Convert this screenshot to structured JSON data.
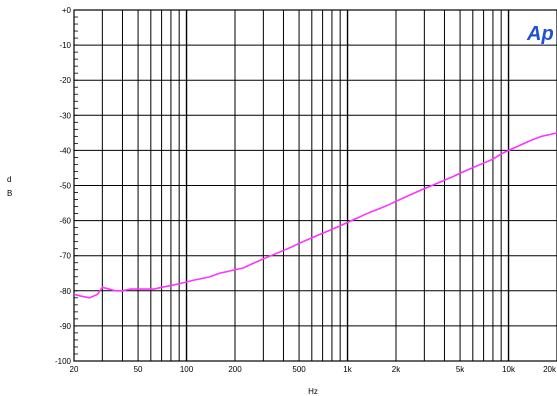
{
  "logo_text": "Ap",
  "colors": {
    "trace": "#ff33ff",
    "grid": "#000000",
    "logo": "#1f4fd6"
  },
  "chart_data": {
    "type": "line",
    "title": "",
    "xlabel": "Hz",
    "ylabel": "dB",
    "ylabel_lines": [
      "d",
      "B"
    ],
    "x_scale": "log",
    "xlim": [
      20,
      20000
    ],
    "ylim": [
      -100,
      0
    ],
    "grid": true,
    "x_ticks": [
      {
        "value": 20,
        "label": "20"
      },
      {
        "value": 50,
        "label": "50"
      },
      {
        "value": 100,
        "label": "100"
      },
      {
        "value": 200,
        "label": "200"
      },
      {
        "value": 500,
        "label": "500"
      },
      {
        "value": 1000,
        "label": "1k"
      },
      {
        "value": 2000,
        "label": "2k"
      },
      {
        "value": 5000,
        "label": "5k"
      },
      {
        "value": 10000,
        "label": "10k"
      },
      {
        "value": 20000,
        "label": "20k"
      }
    ],
    "y_ticks": [
      {
        "value": 0,
        "label": "+0"
      },
      {
        "value": -10,
        "label": "-10"
      },
      {
        "value": -20,
        "label": "-20"
      },
      {
        "value": -30,
        "label": "-30"
      },
      {
        "value": -40,
        "label": "-40"
      },
      {
        "value": -50,
        "label": "-50"
      },
      {
        "value": -60,
        "label": "-60"
      },
      {
        "value": -70,
        "label": "-70"
      },
      {
        "value": -80,
        "label": "-80"
      },
      {
        "value": -90,
        "label": "-90"
      },
      {
        "value": -100,
        "label": "-100"
      }
    ],
    "series": [
      {
        "x": [
          20,
          22,
          25,
          28,
          30,
          33,
          36,
          40,
          45,
          50,
          56,
          63,
          70,
          80,
          90,
          100,
          110,
          125,
          140,
          160,
          180,
          200,
          225,
          250,
          280,
          315,
          355,
          400,
          450,
          500,
          560,
          630,
          710,
          800,
          900,
          1000,
          1120,
          1250,
          1400,
          1600,
          1800,
          2000,
          2240,
          2500,
          2800,
          3150,
          3550,
          4000,
          4500,
          5000,
          5600,
          6300,
          7100,
          8000,
          9000,
          10000,
          11200,
          12500,
          14000,
          16000,
          18000,
          20000
        ],
        "values": [
          -81,
          -81.5,
          -82,
          -81,
          -79,
          -79.5,
          -80,
          -80,
          -79.5,
          -79.5,
          -79.5,
          -79.5,
          -79,
          -78.5,
          -78,
          -77.5,
          -77,
          -76.5,
          -76,
          -75,
          -74.5,
          -74,
          -73.5,
          -72.5,
          -71.5,
          -70.5,
          -69.5,
          -68.5,
          -67.5,
          -66.5,
          -65.5,
          -64.5,
          -63.5,
          -62.5,
          -61.5,
          -60.5,
          -59.5,
          -58.5,
          -57.5,
          -56.5,
          -55.5,
          -54.5,
          -53.5,
          -52.5,
          -51.5,
          -50.5,
          -49.5,
          -48.5,
          -47.5,
          -46.5,
          -45.5,
          -44.5,
          -43.5,
          -42.5,
          -41,
          -40,
          -39,
          -38,
          -37,
          -36,
          -35.5,
          -35
        ]
      }
    ]
  }
}
